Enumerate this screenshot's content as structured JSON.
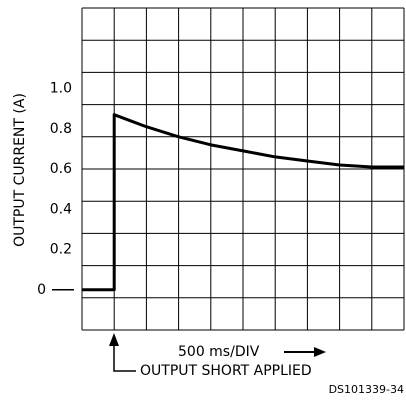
{
  "chart_data": {
    "type": "line",
    "ylabel": "OUTPUT CURRENT (A)",
    "xlabel": "500 ms/DIV",
    "annotation": "OUTPUT SHORT APPLIED",
    "figure_id": "DS101339-34",
    "xlim": [
      -500,
      4500
    ],
    "ylim": [
      -0.2,
      1.4
    ],
    "yticks": [
      0,
      0.2,
      0.4,
      0.6,
      0.8,
      {
        "value": 1,
        "label": "1.0"
      }
    ],
    "grid": true,
    "series": [
      {
        "name": "OUTPUT CURRENT",
        "color": "#000000",
        "x": [
          -500,
          0,
          0,
          500,
          1000,
          1500,
          2000,
          2500,
          3000,
          3500,
          4000,
          4500
        ],
        "values": [
          0,
          0,
          0.87,
          0.81,
          0.76,
          0.72,
          0.69,
          0.66,
          0.64,
          0.62,
          0.61,
          0.61
        ]
      }
    ]
  }
}
